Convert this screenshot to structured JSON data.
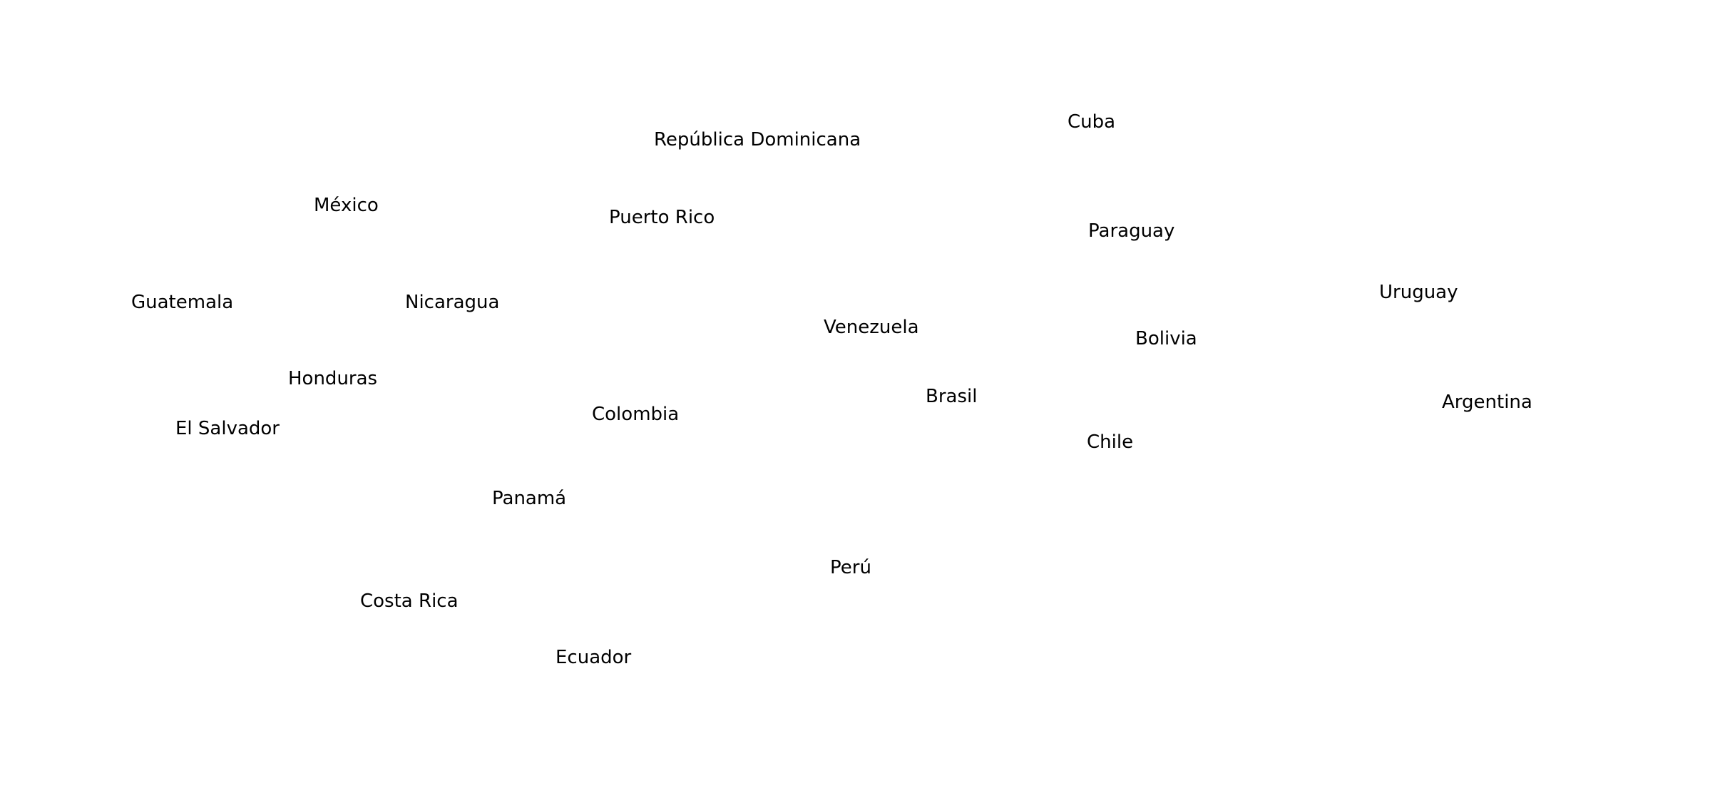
{
  "countries": {
    "republica_dominicana": "República Dominicana",
    "cuba": "Cuba",
    "mexico": "México",
    "puerto_rico": "Puerto Rico",
    "paraguay": "Paraguay",
    "guatemala": "Guatemala",
    "nicaragua": "Nicaragua",
    "uruguay": "Uruguay",
    "venezuela": "Venezuela",
    "bolivia": "Bolivia",
    "honduras": "Honduras",
    "brasil": "Brasil",
    "argentina": "Argentina",
    "colombia": "Colombia",
    "el_salvador": "El Salvador",
    "chile": "Chile",
    "panama": "Panamá",
    "peru": "Perú",
    "costa_rica": "Costa Rica",
    "ecuador": "Ecuador"
  },
  "colors": {
    "background": "#ffffff",
    "text": "#000000"
  }
}
